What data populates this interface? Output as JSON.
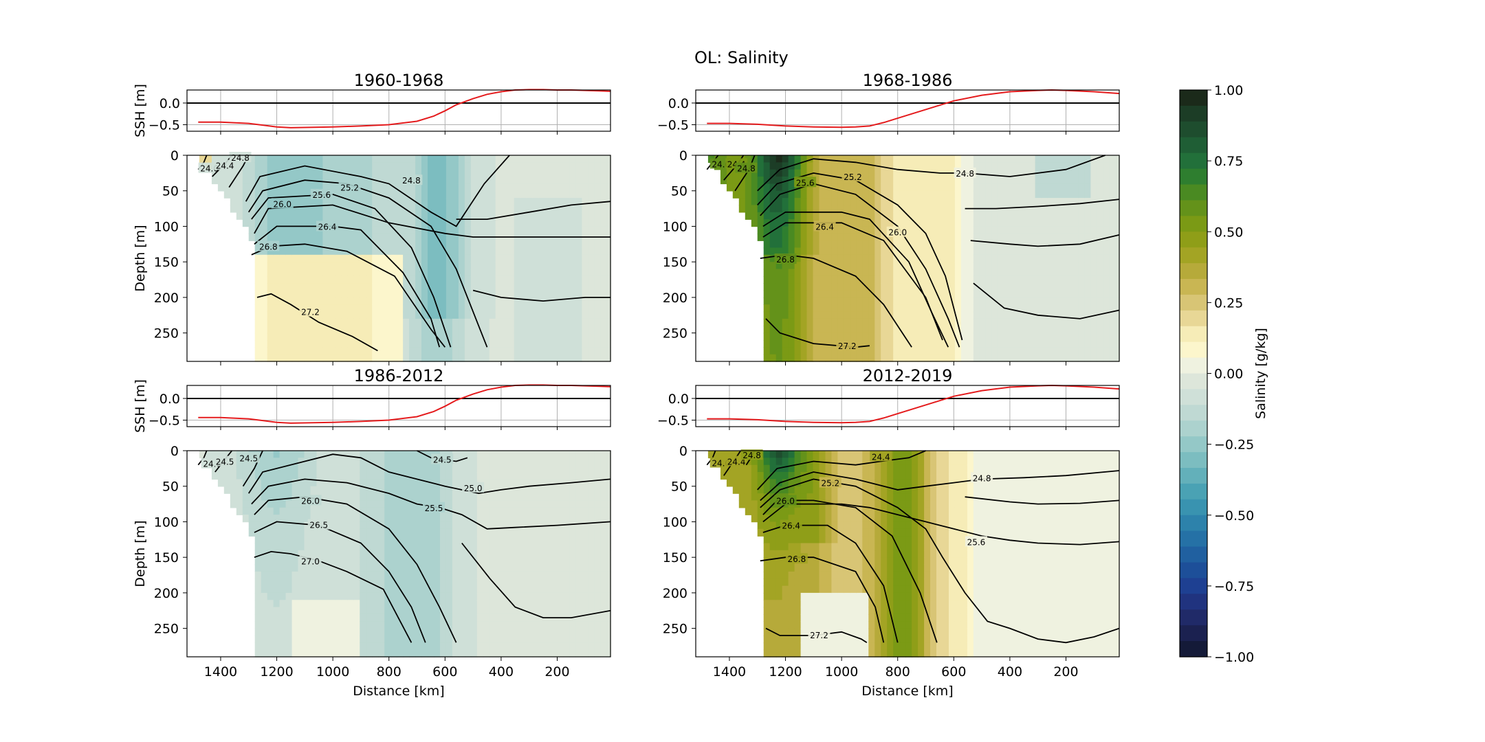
{
  "figure": {
    "title": "OL: Salinity",
    "colorbar": {
      "label": "Salinity [g/kg]",
      "range": [
        -1.0,
        1.0
      ],
      "ticks": [
        "1.00",
        "0.75",
        "0.50",
        "0.25",
        "0.00",
        "−0.25",
        "−0.50",
        "−0.75",
        "−1.00"
      ],
      "colors_top_to_bottom": [
        "#1b2a1a",
        "#1c3d26",
        "#1e4d2e",
        "#1f5e35",
        "#22703a",
        "#2e7e2f",
        "#4a8a22",
        "#64921a",
        "#7b9a15",
        "#8f9e18",
        "#a3a424",
        "#b6aa3a",
        "#c9b653",
        "#d8c575",
        "#e8d796",
        "#f6ecb7",
        "#fcf6cc",
        "#eff2e0",
        "#dde6da",
        "#cfe0d8",
        "#bfd9d3",
        "#acd2ce",
        "#94c8c7",
        "#7cbdc0",
        "#63b0ba",
        "#4aa2b4",
        "#3993b0",
        "#2d82ab",
        "#2571a6",
        "#2060a0",
        "#1d4f99",
        "#1e4092",
        "#20337f",
        "#202a68",
        "#1b2150",
        "#141a38"
      ]
    },
    "common": {
      "ssh_ylabel": "SSH [m]",
      "ssh_ticks": [
        "0.0",
        "−0.5"
      ],
      "depth_ylabel": "Depth [m]",
      "depth_ticks": [
        "0",
        "50",
        "100",
        "150",
        "200",
        "250"
      ],
      "xlabel": "Distance [km]",
      "x_ticks": [
        "1400",
        "1200",
        "1000",
        "800",
        "600",
        "400",
        "200"
      ],
      "line_color": "#e41a1c"
    }
  },
  "panels": [
    {
      "title": "1960-1968",
      "contour_labels": [
        "24.0",
        "24.4",
        "24.8",
        "24.8",
        "25.2",
        "25.6",
        "26.0",
        "26.4",
        "26.8",
        "27.2"
      ]
    },
    {
      "title": "1968-1986",
      "contour_labels": [
        "24.0",
        "24.4",
        "24.8",
        "24.8",
        "25.2",
        "25.6",
        "26.0",
        "26.4",
        "26.8",
        "27.2"
      ]
    },
    {
      "title": "1986-2012",
      "contour_labels": [
        "24.0",
        "24.5",
        "24.5",
        "25.0",
        "25.5",
        "26.0",
        "26.5",
        "27.0"
      ]
    },
    {
      "title": "2012-2019",
      "contour_labels": [
        "24.0",
        "24.4",
        "24.4",
        "24.8",
        "24.8",
        "25.2",
        "25.6",
        "26.0",
        "26.4",
        "26.8",
        "27.2"
      ]
    }
  ],
  "chart_data": [
    {
      "type": "line",
      "panel": "1960-1968",
      "ylabel": "SSH [m]",
      "xlim": [
        1520,
        10
      ],
      "ylim": [
        -0.65,
        0.3
      ],
      "series": [
        {
          "x": [
            1480,
            1400,
            1300,
            1200,
            1150,
            1000,
            900,
            800,
            700,
            640,
            600,
            560,
            500,
            450,
            400,
            350,
            300,
            250,
            200,
            150,
            100,
            50,
            10
          ],
          "values": [
            -0.44,
            -0.44,
            -0.47,
            -0.55,
            -0.57,
            -0.55,
            -0.53,
            -0.5,
            -0.42,
            -0.3,
            -0.18,
            -0.04,
            0.1,
            0.2,
            0.26,
            0.3,
            0.31,
            0.31,
            0.3,
            0.3,
            0.29,
            0.28,
            0.27
          ]
        }
      ]
    },
    {
      "type": "heatmap",
      "panel": "1960-1968",
      "ylabel": "Depth [m]",
      "xlabel": "",
      "xlim": [
        1520,
        10
      ],
      "ylim": [
        290,
        0
      ],
      "z_label": "Salinity [g/kg]",
      "z_range": [
        -1.0,
        1.0
      ],
      "contour_levels": [
        24.0,
        24.4,
        24.8,
        25.2,
        25.6,
        26.0,
        26.4,
        26.8,
        27.2
      ]
    },
    {
      "type": "line",
      "panel": "1968-1986",
      "ylabel": "SSH [m]",
      "xlim": [
        1520,
        10
      ],
      "ylim": [
        -0.65,
        0.3
      ],
      "series": [
        {
          "x": [
            1480,
            1400,
            1300,
            1200,
            1100,
            1000,
            950,
            900,
            850,
            800,
            700,
            600,
            500,
            400,
            300,
            250,
            200,
            100,
            10
          ],
          "values": [
            -0.47,
            -0.47,
            -0.49,
            -0.53,
            -0.55,
            -0.56,
            -0.55,
            -0.53,
            -0.45,
            -0.35,
            -0.15,
            0.05,
            0.18,
            0.26,
            0.29,
            0.3,
            0.29,
            0.26,
            0.22
          ]
        }
      ]
    },
    {
      "type": "heatmap",
      "panel": "1968-1986",
      "ylabel": "Depth [m]",
      "xlabel": "",
      "xlim": [
        1520,
        10
      ],
      "ylim": [
        290,
        0
      ],
      "z_label": "Salinity [g/kg]",
      "z_range": [
        -1.0,
        1.0
      ],
      "contour_levels": [
        24.0,
        24.4,
        24.8,
        25.2,
        25.6,
        26.0,
        26.4,
        26.8,
        27.2
      ]
    },
    {
      "type": "line",
      "panel": "1986-2012",
      "ylabel": "SSH [m]",
      "xlim": [
        1520,
        10
      ],
      "ylim": [
        -0.65,
        0.3
      ],
      "series": [
        {
          "x": [
            1480,
            1400,
            1300,
            1200,
            1150,
            1000,
            900,
            800,
            700,
            640,
            600,
            560,
            500,
            450,
            400,
            350,
            300,
            250,
            200,
            150,
            100,
            50,
            10
          ],
          "values": [
            -0.44,
            -0.44,
            -0.47,
            -0.55,
            -0.57,
            -0.55,
            -0.53,
            -0.5,
            -0.42,
            -0.3,
            -0.18,
            -0.04,
            0.1,
            0.2,
            0.26,
            0.3,
            0.31,
            0.31,
            0.3,
            0.3,
            0.29,
            0.28,
            0.27
          ]
        }
      ]
    },
    {
      "type": "heatmap",
      "panel": "1986-2012",
      "ylabel": "Depth [m]",
      "xlabel": "Distance [km]",
      "xlim": [
        1520,
        10
      ],
      "ylim": [
        290,
        0
      ],
      "z_label": "Salinity [g/kg]",
      "z_range": [
        -1.0,
        1.0
      ],
      "contour_levels": [
        24.0,
        24.5,
        25.0,
        25.5,
        26.0,
        26.5,
        27.0
      ]
    },
    {
      "type": "line",
      "panel": "2012-2019",
      "ylabel": "SSH [m]",
      "xlim": [
        1520,
        10
      ],
      "ylim": [
        -0.65,
        0.3
      ],
      "series": [
        {
          "x": [
            1480,
            1400,
            1300,
            1200,
            1100,
            1000,
            950,
            900,
            850,
            800,
            700,
            600,
            500,
            400,
            300,
            250,
            200,
            100,
            10
          ],
          "values": [
            -0.47,
            -0.47,
            -0.49,
            -0.53,
            -0.55,
            -0.56,
            -0.55,
            -0.53,
            -0.45,
            -0.35,
            -0.15,
            0.05,
            0.18,
            0.26,
            0.29,
            0.3,
            0.29,
            0.26,
            0.22
          ]
        }
      ]
    },
    {
      "type": "heatmap",
      "panel": "2012-2019",
      "ylabel": "Depth [m]",
      "xlabel": "Distance [km]",
      "xlim": [
        1520,
        10
      ],
      "ylim": [
        290,
        0
      ],
      "z_label": "Salinity [g/kg]",
      "z_range": [
        -1.0,
        1.0
      ],
      "contour_levels": [
        24.0,
        24.4,
        24.8,
        25.2,
        25.6,
        26.0,
        26.4,
        26.8,
        27.2
      ]
    }
  ]
}
